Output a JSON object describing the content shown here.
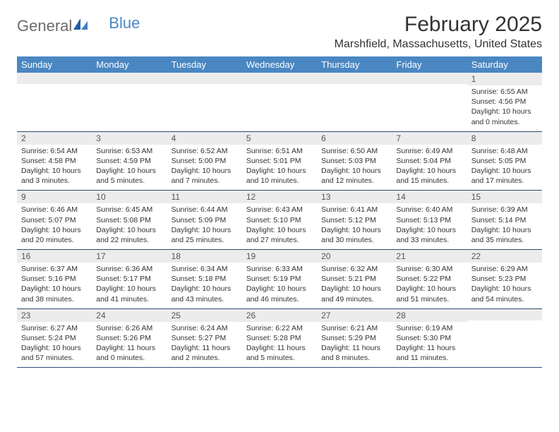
{
  "logo": {
    "text1": "General",
    "text2": "Blue"
  },
  "title": "February 2025",
  "location": "Marshfield, Massachusetts, United States",
  "colors": {
    "header_bg": "#4a87c2",
    "header_text": "#ffffff",
    "daynum_bg": "#ececec",
    "rule": "#2f4a78",
    "logo_gray": "#6b6b6b",
    "logo_blue": "#4a87c2"
  },
  "dow": [
    "Sunday",
    "Monday",
    "Tuesday",
    "Wednesday",
    "Thursday",
    "Friday",
    "Saturday"
  ],
  "weeks": [
    [
      {
        "n": "",
        "lines": []
      },
      {
        "n": "",
        "lines": []
      },
      {
        "n": "",
        "lines": []
      },
      {
        "n": "",
        "lines": []
      },
      {
        "n": "",
        "lines": []
      },
      {
        "n": "",
        "lines": []
      },
      {
        "n": "1",
        "lines": [
          "Sunrise: 6:55 AM",
          "Sunset: 4:56 PM",
          "Daylight: 10 hours and 0 minutes."
        ]
      }
    ],
    [
      {
        "n": "2",
        "lines": [
          "Sunrise: 6:54 AM",
          "Sunset: 4:58 PM",
          "Daylight: 10 hours and 3 minutes."
        ]
      },
      {
        "n": "3",
        "lines": [
          "Sunrise: 6:53 AM",
          "Sunset: 4:59 PM",
          "Daylight: 10 hours and 5 minutes."
        ]
      },
      {
        "n": "4",
        "lines": [
          "Sunrise: 6:52 AM",
          "Sunset: 5:00 PM",
          "Daylight: 10 hours and 7 minutes."
        ]
      },
      {
        "n": "5",
        "lines": [
          "Sunrise: 6:51 AM",
          "Sunset: 5:01 PM",
          "Daylight: 10 hours and 10 minutes."
        ]
      },
      {
        "n": "6",
        "lines": [
          "Sunrise: 6:50 AM",
          "Sunset: 5:03 PM",
          "Daylight: 10 hours and 12 minutes."
        ]
      },
      {
        "n": "7",
        "lines": [
          "Sunrise: 6:49 AM",
          "Sunset: 5:04 PM",
          "Daylight: 10 hours and 15 minutes."
        ]
      },
      {
        "n": "8",
        "lines": [
          "Sunrise: 6:48 AM",
          "Sunset: 5:05 PM",
          "Daylight: 10 hours and 17 minutes."
        ]
      }
    ],
    [
      {
        "n": "9",
        "lines": [
          "Sunrise: 6:46 AM",
          "Sunset: 5:07 PM",
          "Daylight: 10 hours and 20 minutes."
        ]
      },
      {
        "n": "10",
        "lines": [
          "Sunrise: 6:45 AM",
          "Sunset: 5:08 PM",
          "Daylight: 10 hours and 22 minutes."
        ]
      },
      {
        "n": "11",
        "lines": [
          "Sunrise: 6:44 AM",
          "Sunset: 5:09 PM",
          "Daylight: 10 hours and 25 minutes."
        ]
      },
      {
        "n": "12",
        "lines": [
          "Sunrise: 6:43 AM",
          "Sunset: 5:10 PM",
          "Daylight: 10 hours and 27 minutes."
        ]
      },
      {
        "n": "13",
        "lines": [
          "Sunrise: 6:41 AM",
          "Sunset: 5:12 PM",
          "Daylight: 10 hours and 30 minutes."
        ]
      },
      {
        "n": "14",
        "lines": [
          "Sunrise: 6:40 AM",
          "Sunset: 5:13 PM",
          "Daylight: 10 hours and 33 minutes."
        ]
      },
      {
        "n": "15",
        "lines": [
          "Sunrise: 6:39 AM",
          "Sunset: 5:14 PM",
          "Daylight: 10 hours and 35 minutes."
        ]
      }
    ],
    [
      {
        "n": "16",
        "lines": [
          "Sunrise: 6:37 AM",
          "Sunset: 5:16 PM",
          "Daylight: 10 hours and 38 minutes."
        ]
      },
      {
        "n": "17",
        "lines": [
          "Sunrise: 6:36 AM",
          "Sunset: 5:17 PM",
          "Daylight: 10 hours and 41 minutes."
        ]
      },
      {
        "n": "18",
        "lines": [
          "Sunrise: 6:34 AM",
          "Sunset: 5:18 PM",
          "Daylight: 10 hours and 43 minutes."
        ]
      },
      {
        "n": "19",
        "lines": [
          "Sunrise: 6:33 AM",
          "Sunset: 5:19 PM",
          "Daylight: 10 hours and 46 minutes."
        ]
      },
      {
        "n": "20",
        "lines": [
          "Sunrise: 6:32 AM",
          "Sunset: 5:21 PM",
          "Daylight: 10 hours and 49 minutes."
        ]
      },
      {
        "n": "21",
        "lines": [
          "Sunrise: 6:30 AM",
          "Sunset: 5:22 PM",
          "Daylight: 10 hours and 51 minutes."
        ]
      },
      {
        "n": "22",
        "lines": [
          "Sunrise: 6:29 AM",
          "Sunset: 5:23 PM",
          "Daylight: 10 hours and 54 minutes."
        ]
      }
    ],
    [
      {
        "n": "23",
        "lines": [
          "Sunrise: 6:27 AM",
          "Sunset: 5:24 PM",
          "Daylight: 10 hours and 57 minutes."
        ]
      },
      {
        "n": "24",
        "lines": [
          "Sunrise: 6:26 AM",
          "Sunset: 5:26 PM",
          "Daylight: 11 hours and 0 minutes."
        ]
      },
      {
        "n": "25",
        "lines": [
          "Sunrise: 6:24 AM",
          "Sunset: 5:27 PM",
          "Daylight: 11 hours and 2 minutes."
        ]
      },
      {
        "n": "26",
        "lines": [
          "Sunrise: 6:22 AM",
          "Sunset: 5:28 PM",
          "Daylight: 11 hours and 5 minutes."
        ]
      },
      {
        "n": "27",
        "lines": [
          "Sunrise: 6:21 AM",
          "Sunset: 5:29 PM",
          "Daylight: 11 hours and 8 minutes."
        ]
      },
      {
        "n": "28",
        "lines": [
          "Sunrise: 6:19 AM",
          "Sunset: 5:30 PM",
          "Daylight: 11 hours and 11 minutes."
        ]
      },
      {
        "n": "",
        "lines": []
      }
    ]
  ]
}
